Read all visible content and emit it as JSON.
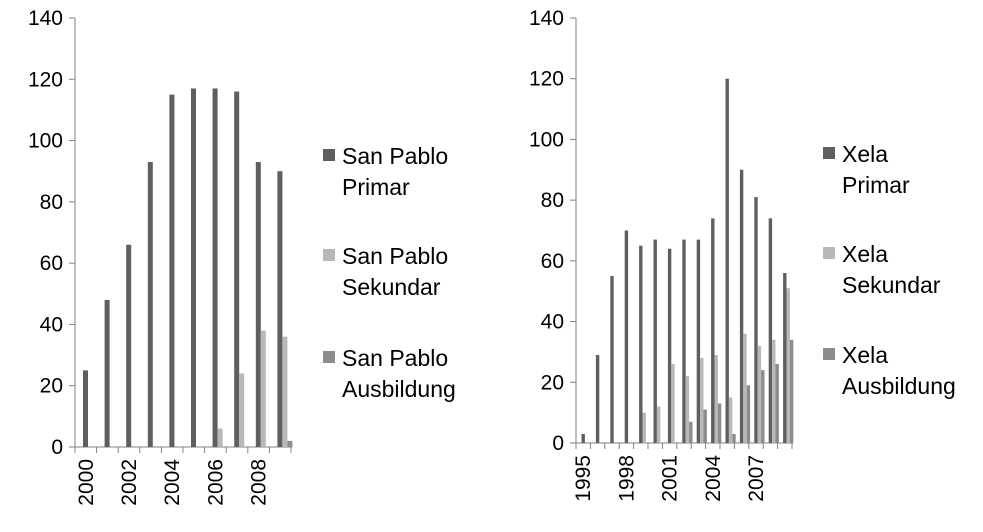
{
  "chart_data": [
    {
      "type": "bar",
      "ylim": [
        0,
        140
      ],
      "yticks": [
        "0",
        "20",
        "40",
        "60",
        "80",
        "100",
        "120",
        "140"
      ],
      "categories": [
        "2000",
        "2001",
        "2002",
        "2003",
        "2004",
        "2005",
        "2006",
        "2007",
        "2008",
        "2009"
      ],
      "xtick_labels": [
        "2000",
        "2002",
        "2004",
        "2006",
        "2008"
      ],
      "grid": false,
      "legend_position": "right",
      "series": [
        {
          "name": "San Pablo Primar",
          "name_lines": [
            "San Pablo",
            "Primar"
          ],
          "color": "#5f5f5f",
          "values": [
            25,
            48,
            66,
            93,
            115,
            117,
            117,
            116,
            93,
            90
          ]
        },
        {
          "name": "San Pablo Sekundar",
          "name_lines": [
            "San Pablo",
            "Sekundar"
          ],
          "color": "#b8b8b8",
          "values": [
            0,
            0,
            0,
            0,
            0,
            0,
            6,
            24,
            38,
            36
          ]
        },
        {
          "name": "San Pablo Ausbildung",
          "name_lines": [
            "San Pablo",
            "Ausbildung"
          ],
          "color": "#8c8c8c",
          "values": [
            0,
            0,
            0,
            0,
            0,
            0,
            0,
            0,
            0,
            2
          ]
        }
      ]
    },
    {
      "type": "bar",
      "ylim": [
        0,
        140
      ],
      "yticks": [
        "0",
        "20",
        "40",
        "60",
        "80",
        "100",
        "120",
        "140"
      ],
      "categories": [
        "1995",
        "1996",
        "1997",
        "1998",
        "1999",
        "2000",
        "2001",
        "2002",
        "2003",
        "2004",
        "2005",
        "2006",
        "2007",
        "2008",
        "2009"
      ],
      "xtick_labels": [
        "1995",
        "1998",
        "2001",
        "2004",
        "2007"
      ],
      "grid": false,
      "legend_position": "right",
      "series": [
        {
          "name": "Xela Primar",
          "name_lines": [
            "Xela",
            "Primar"
          ],
          "color": "#5f5f5f",
          "values": [
            3,
            29,
            55,
            70,
            65,
            67,
            64,
            67,
            67,
            74,
            120,
            90,
            81,
            74,
            56
          ]
        },
        {
          "name": "Xela Sekundar",
          "name_lines": [
            "Xela",
            "Sekundar"
          ],
          "color": "#b8b8b8",
          "values": [
            0,
            0,
            0,
            0,
            10,
            12,
            26,
            22,
            28,
            29,
            15,
            36,
            32,
            34,
            51
          ]
        },
        {
          "name": "Xela Ausbildung",
          "name_lines": [
            "Xela",
            "Ausbildung"
          ],
          "color": "#8c8c8c",
          "values": [
            0,
            0,
            0,
            0,
            0,
            0,
            0,
            7,
            11,
            13,
            3,
            19,
            24,
            26,
            34
          ]
        }
      ]
    }
  ]
}
